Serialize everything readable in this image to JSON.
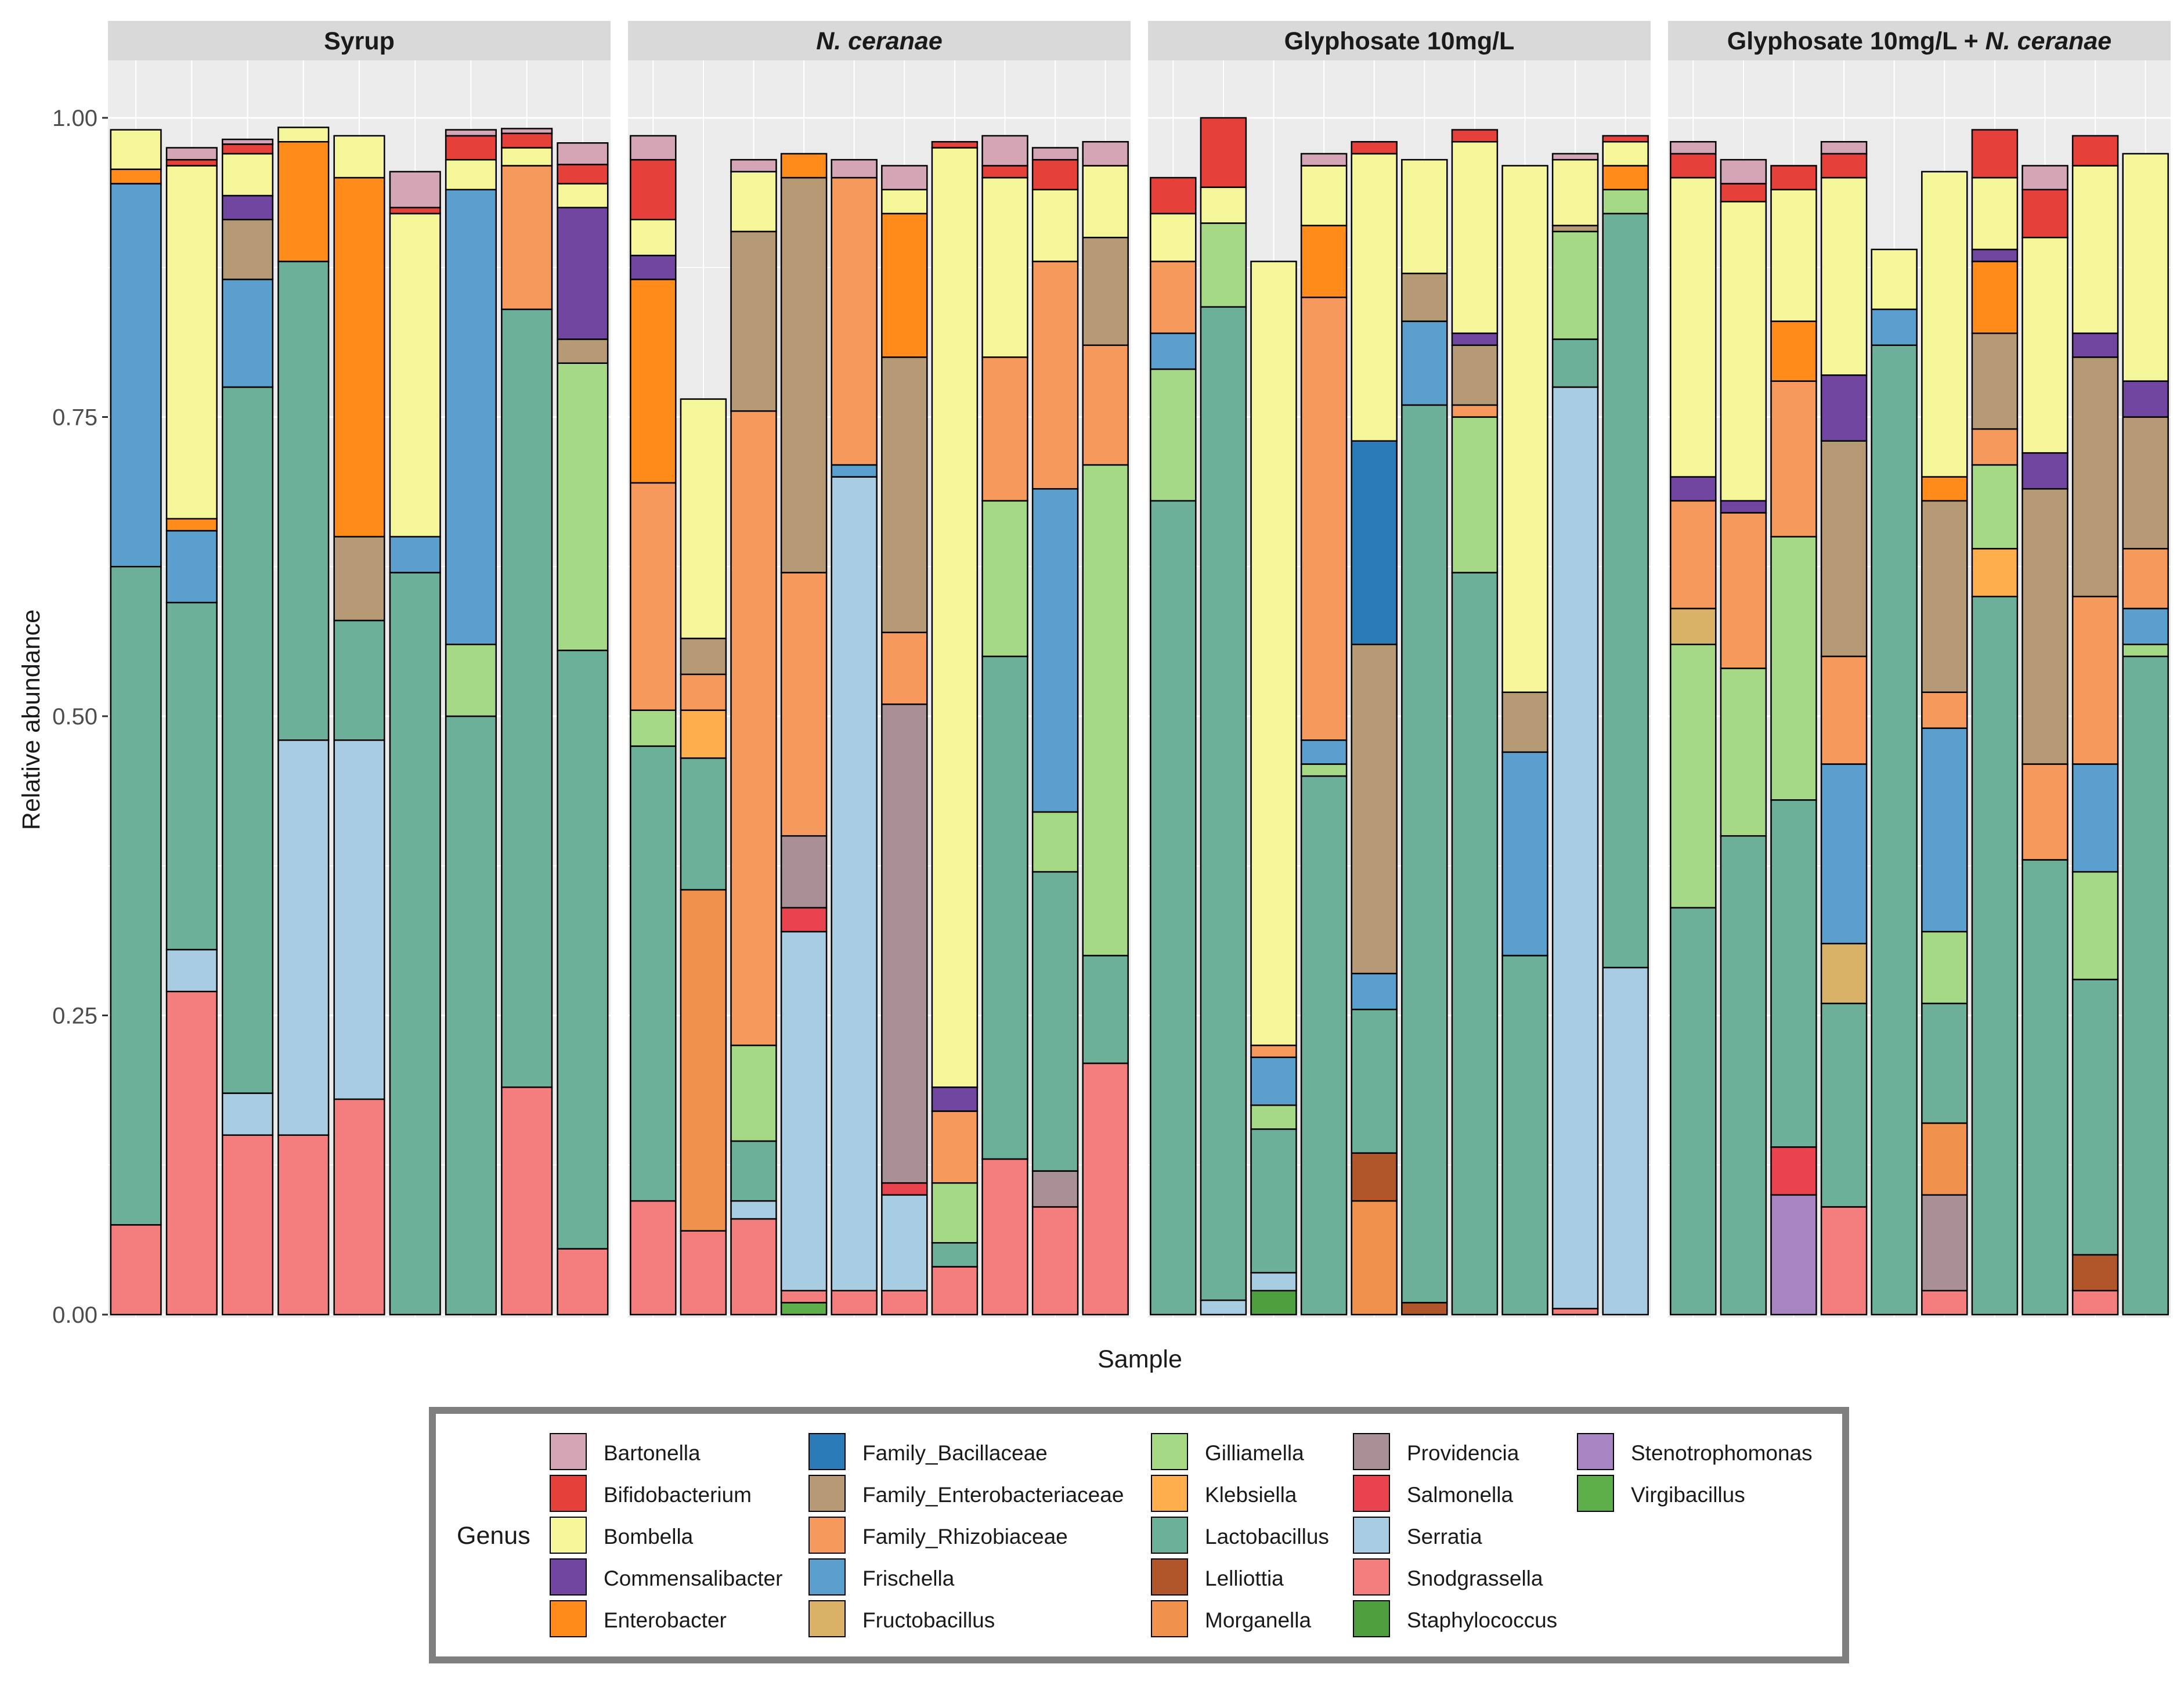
{
  "chart_data": {
    "type": "bar",
    "stacked": true,
    "ylabel": "Relative abundance",
    "xlabel": "Sample",
    "ylim": [
      0,
      1
    ],
    "yticks": [
      "0.00",
      "0.25",
      "0.50",
      "0.75",
      "1.00"
    ],
    "legend": {
      "title": "Genus",
      "position": "bottom",
      "entries": [
        {
          "name": "Bartonella",
          "color": "#D4A6B5"
        },
        {
          "name": "Bifidobacterium",
          "color": "#E5403A"
        },
        {
          "name": "Bombella",
          "color": "#F5F59A"
        },
        {
          "name": "Commensalibacter",
          "color": "#7046A0"
        },
        {
          "name": "Enterobacter",
          "color": "#FF8C1A"
        },
        {
          "name": "Family_Bacillaceae",
          "color": "#2A7BB8"
        },
        {
          "name": "Family_Enterobacteriaceae",
          "color": "#B69A76"
        },
        {
          "name": "Family_Rhizobiaceae",
          "color": "#F59A5C"
        },
        {
          "name": "Frischella",
          "color": "#5B9FCF"
        },
        {
          "name": "Fructobacillus",
          "color": "#D9B167"
        },
        {
          "name": "Gilliamella",
          "color": "#A6D985"
        },
        {
          "name": "Klebsiella",
          "color": "#FFAE4D"
        },
        {
          "name": "Lactobacillus",
          "color": "#6DB09A"
        },
        {
          "name": "Lelliottia",
          "color": "#B0562A"
        },
        {
          "name": "Morganella",
          "color": "#F0924E"
        },
        {
          "name": "Providencia",
          "color": "#A99097"
        },
        {
          "name": "Salmonella",
          "color": "#E8434F"
        },
        {
          "name": "Serratia",
          "color": "#A8CDE2"
        },
        {
          "name": "Snodgrassella",
          "color": "#F47E7E"
        },
        {
          "name": "Staphylococcus",
          "color": "#4DA03D"
        },
        {
          "name": "Stenotrophomonas",
          "color": "#A785C3"
        },
        {
          "name": "Virgibacillus",
          "color": "#5DAF49"
        }
      ]
    },
    "facets": [
      {
        "title": "Syrup",
        "title_plain": "Syrup",
        "title_italic": "",
        "samples": [
          {
            "Snodgrassella": 0.075,
            "Lactobacillus": 0.55,
            "Frischella": 0.32,
            "Enterobacter": 0.012,
            "Bombella": 0.033
          },
          {
            "Snodgrassella": 0.27,
            "Serratia": 0.035,
            "Lactobacillus": 0.29,
            "Frischella": 0.06,
            "Enterobacter": 0.01,
            "Bombella": 0.295,
            "Bifidobacterium": 0.005,
            "Bartonella": 0.01
          },
          {
            "Snodgrassella": 0.15,
            "Serratia": 0.035,
            "Lactobacillus": 0.59,
            "Frischella": 0.09,
            "Family_Enterobacteriaceae": 0.05,
            "Commensalibacter": 0.02,
            "Bombella": 0.035,
            "Bifidobacterium": 0.008,
            "Bartonella": 0.004
          },
          {
            "Snodgrassella": 0.15,
            "Serratia": 0.33,
            "Lactobacillus": 0.4,
            "Enterobacter": 0.1,
            "Bombella": 0.012
          },
          {
            "Snodgrassella": 0.18,
            "Serratia": 0.3,
            "Lactobacillus": 0.1,
            "Family_Enterobacteriaceae": 0.07,
            "Enterobacter": 0.3,
            "Bombella": 0.035
          },
          {
            "Lactobacillus": 0.62,
            "Frischella": 0.03,
            "Bombella": 0.27,
            "Bifidobacterium": 0.005,
            "Bartonella": 0.03
          },
          {
            "Lactobacillus": 0.5,
            "Gilliamella": 0.06,
            "Frischella": 0.38,
            "Bombella": 0.025,
            "Bifidobacterium": 0.02,
            "Bartonella": 0.005
          },
          {
            "Snodgrassella": 0.19,
            "Lactobacillus": 0.65,
            "Family_Rhizobiaceae": 0.12,
            "Bombella": 0.015,
            "Bifidobacterium": 0.012,
            "Bartonella": 0.004
          },
          {
            "Snodgrassella": 0.055,
            "Lactobacillus": 0.5,
            "Gilliamella": 0.24,
            "Family_Enterobacteriaceae": 0.02,
            "Commensalibacter": 0.11,
            "Bombella": 0.02,
            "Bifidobacterium": 0.016,
            "Bartonella": 0.018
          }
        ]
      },
      {
        "title": "N. ceranae",
        "title_plain": "",
        "title_italic": "N. ceranae",
        "samples": [
          {
            "Snodgrassella": 0.095,
            "Lactobacillus": 0.38,
            "Gilliamella": 0.03,
            "Family_Rhizobiaceae": 0.19,
            "Enterobacter": 0.17,
            "Commensalibacter": 0.02,
            "Bombella": 0.03,
            "Bifidobacterium": 0.05,
            "Bartonella": 0.02
          },
          {
            "Snodgrassella": 0.07,
            "Family_Rhizobiaceae": 0.03,
            "Lactobacillus": 0.11,
            "Klebsiella": 0.04,
            "Family_Enterobacteriaceae": 0.03,
            "Morganella": 0.285,
            "Bombella": 0.2
          },
          {
            "Snodgrassella": 0.08,
            "Serratia": 0.015,
            "Lactobacillus": 0.05,
            "Gilliamella": 0.08,
            "Family_Rhizobiaceae": 0.53,
            "Family_Enterobacteriaceae": 0.15,
            "Bombella": 0.05,
            "Bartonella": 0.01
          },
          {
            "Virgibacillus": 0.01,
            "Snodgrassella": 0.01,
            "Serratia": 0.3,
            "Salmonella": 0.02,
            "Providencia": 0.06,
            "Family_Rhizobiaceae": 0.22,
            "Family_Enterobacteriaceae": 0.33,
            "Enterobacter": 0.02
          },
          {
            "Snodgrassella": 0.02,
            "Serratia": 0.68,
            "Frischella": 0.01,
            "Family_Rhizobiaceae": 0.24,
            "Bartonella": 0.015
          },
          {
            "Snodgrassella": 0.02,
            "Serratia": 0.08,
            "Salmonella": 0.01,
            "Providencia": 0.4,
            "Family_Rhizobiaceae": 0.06,
            "Family_Enterobacteriaceae": 0.23,
            "Enterobacter": 0.12,
            "Bombella": 0.02,
            "Bartonella": 0.02
          },
          {
            "Snodgrassella": 0.04,
            "Lactobacillus": 0.02,
            "Gilliamella": 0.05,
            "Family_Rhizobiaceae": 0.06,
            "Commensalibacter": 0.02,
            "Bombella": 0.785,
            "Bifidobacterium": 0.005
          },
          {
            "Snodgrassella": 0.13,
            "Lactobacillus": 0.42,
            "Gilliamella": 0.13,
            "Family_Rhizobiaceae": 0.12,
            "Bombella": 0.15,
            "Bifidobacterium": 0.01,
            "Bartonella": 0.025
          },
          {
            "Snodgrassella": 0.09,
            "Providencia": 0.03,
            "Lactobacillus": 0.25,
            "Gilliamella": 0.05,
            "Frischella": 0.27,
            "Family_Rhizobiaceae": 0.19,
            "Bombella": 0.06,
            "Bifidobacterium": 0.025,
            "Bartonella": 0.01
          },
          {
            "Snodgrassella": 0.21,
            "Lactobacillus": 0.09,
            "Gilliamella": 0.41,
            "Family_Rhizobiaceae": 0.1,
            "Family_Enterobacteriaceae": 0.09,
            "Bombella": 0.06,
            "Bartonella": 0.02
          }
        ]
      },
      {
        "title": "Glyphosate 10mg/L",
        "title_plain": "Glyphosate 10mg/L",
        "title_italic": "",
        "samples": [
          {
            "Lactobacillus": 0.68,
            "Gilliamella": 0.11,
            "Frischella": 0.03,
            "Family_Rhizobiaceae": 0.06,
            "Bombella": 0.04,
            "Bifidobacterium": 0.03
          },
          {
            "Serratia": 0.012,
            "Lactobacillus": 0.83,
            "Gilliamella": 0.07,
            "Bombella": 0.03,
            "Bifidobacterium": 0.07
          },
          {
            "Staphylococcus": 0.02,
            "Serratia": 0.015,
            "Lactobacillus": 0.12,
            "Gilliamella": 0.02,
            "Frischella": 0.04,
            "Family_Rhizobiaceae": 0.01,
            "Bombella": 0.655
          },
          {
            "Lactobacillus": 0.45,
            "Gilliamella": 0.01,
            "Frischella": 0.02,
            "Family_Rhizobiaceae": 0.37,
            "Enterobacter": 0.06,
            "Bombella": 0.05,
            "Bartonella": 0.01
          },
          {
            "Lelliottia": 0.04,
            "Lactobacillus": 0.12,
            "Frischella": 0.03,
            "Morganella": 0.095,
            "Family_Enterobacteriaceae": 0.275,
            "Family_Bacillaceae": 0.17,
            "Bombella": 0.24,
            "Bifidobacterium": 0.01
          },
          {
            "Lelliottia": 0.01,
            "Lactobacillus": 0.75,
            "Frischella": 0.07,
            "Family_Enterobacteriaceae": 0.04,
            "Bombella": 0.095
          },
          {
            "Lactobacillus": 0.62,
            "Gilliamella": 0.13,
            "Family_Rhizobiaceae": 0.01,
            "Family_Enterobacteriaceae": 0.05,
            "Commensalibacter": 0.01,
            "Bombella": 0.16,
            "Bifidobacterium": 0.01
          },
          {
            "Lactobacillus": 0.3,
            "Frischella": 0.17,
            "Family_Enterobacteriaceae": 0.05,
            "Bombella": 0.44
          },
          {
            "Snodgrassella": 0.005,
            "Serratia": 0.77,
            "Lactobacillus": 0.04,
            "Gilliamella": 0.09,
            "Family_Enterobacteriaceae": 0.005,
            "Bombella": 0.055,
            "Bartonella": 0.005
          },
          {
            "Serratia": 0.29,
            "Lactobacillus": 0.63,
            "Gilliamella": 0.02,
            "Enterobacter": 0.02,
            "Bombella": 0.02,
            "Bifidobacterium": 0.005
          }
        ]
      },
      {
        "title": "Glyphosate 10mg/L + N. ceranae",
        "title_plain": "Glyphosate 10mg/L + ",
        "title_italic": "N. ceranae",
        "samples": [
          {
            "Lactobacillus": 0.34,
            "Gilliamella": 0.22,
            "Fructobacillus": 0.03,
            "Family_Rhizobiaceae": 0.09,
            "Commensalibacter": 0.02,
            "Bombella": 0.25,
            "Bifidobacterium": 0.02,
            "Bartonella": 0.01
          },
          {
            "Lactobacillus": 0.4,
            "Gilliamella": 0.14,
            "Family_Rhizobiaceae": 0.13,
            "Commensalibacter": 0.01,
            "Bombella": 0.25,
            "Bifidobacterium": 0.015,
            "Bartonella": 0.02
          },
          {
            "Stenotrophomonas": 0.1,
            "Salmonella": 0.04,
            "Lactobacillus": 0.29,
            "Gilliamella": 0.22,
            "Family_Rhizobiaceae": 0.13,
            "Enterobacter": 0.05,
            "Bombella": 0.11,
            "Bifidobacterium": 0.02
          },
          {
            "Snodgrassella": 0.09,
            "Lactobacillus": 0.17,
            "Fructobacillus": 0.05,
            "Frischella": 0.15,
            "Family_Rhizobiaceae": 0.09,
            "Family_Enterobacteriaceae": 0.18,
            "Commensalibacter": 0.055,
            "Bombella": 0.165,
            "Bifidobacterium": 0.02,
            "Bartonella": 0.01
          },
          {
            "Lactobacillus": 0.81,
            "Frischella": 0.03,
            "Bombella": 0.05
          },
          {
            "Snodgrassella": 0.02,
            "Providencia": 0.08,
            "Morganella": 0.06,
            "Lactobacillus": 0.1,
            "Gilliamella": 0.06,
            "Frischella": 0.17,
            "Family_Rhizobiaceae": 0.03,
            "Family_Enterobacteriaceae": 0.16,
            "Enterobacter": 0.02,
            "Bombella": 0.255
          },
          {
            "Lactobacillus": 0.6,
            "Klebsiella": 0.04,
            "Gilliamella": 0.07,
            "Family_Rhizobiaceae": 0.03,
            "Family_Enterobacteriaceae": 0.08,
            "Enterobacter": 0.06,
            "Commensalibacter": 0.01,
            "Bombella": 0.06,
            "Bifidobacterium": 0.04
          },
          {
            "Lactobacillus": 0.38,
            "Family_Rhizobiaceae": 0.08,
            "Family_Enterobacteriaceae": 0.23,
            "Commensalibacter": 0.03,
            "Bombella": 0.18,
            "Bifidobacterium": 0.04,
            "Bartonella": 0.02
          },
          {
            "Snodgrassella": 0.02,
            "Lelliottia": 0.03,
            "Lactobacillus": 0.23,
            "Gilliamella": 0.09,
            "Frischella": 0.09,
            "Family_Rhizobiaceae": 0.14,
            "Family_Enterobacteriaceae": 0.2,
            "Commensalibacter": 0.02,
            "Bombella": 0.14,
            "Bifidobacterium": 0.025
          },
          {
            "Lactobacillus": 0.55,
            "Gilliamella": 0.01,
            "Frischella": 0.03,
            "Family_Rhizobiaceae": 0.05,
            "Family_Enterobacteriaceae": 0.11,
            "Commensalibacter": 0.03,
            "Bombella": 0.19
          }
        ]
      }
    ]
  }
}
